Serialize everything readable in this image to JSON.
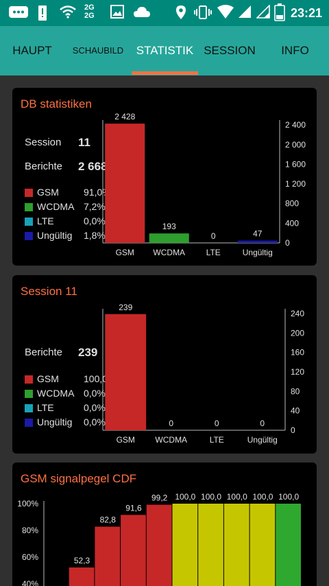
{
  "status_bar": {
    "time": "23:21",
    "icons": [
      "chat-icon",
      "alert-icon",
      "wifi-icon",
      "network-2g-icon",
      "image-icon",
      "cloud-icon",
      "location-icon",
      "vibrate-icon",
      "wifi-signal-icon",
      "signal-icon",
      "signal-icon",
      "battery-icon"
    ],
    "network_label_top": "2G",
    "network_label_bottom": "2G"
  },
  "tabs": [
    {
      "label": "HAUPT",
      "active": false
    },
    {
      "label": "SCHAUBILD",
      "active": false
    },
    {
      "label": "STATISTIK",
      "active": true
    },
    {
      "label": "SESSION",
      "active": false
    },
    {
      "label": "INFO",
      "active": false
    }
  ],
  "colors": {
    "accent": "#ff7043",
    "status_bar": "#00897b",
    "tab_bar": "#26a69a",
    "gsm": "#c62828",
    "wcdma": "#2e9e2e",
    "lte": "#17a2b8",
    "invalid": "#1a1aa8",
    "cdf_red": "#c62828",
    "cdf_yellow": "#c6c600",
    "cdf_green": "#2fa82f"
  },
  "db_card": {
    "title": "DB statistiken",
    "session_label": "Session",
    "session_value": "11",
    "reports_label": "Berichte",
    "reports_value": "2 668",
    "legend": [
      {
        "name": "GSM",
        "pct": "91,0%",
        "color": "#c62828"
      },
      {
        "name": "WCDMA",
        "pct": "7,2%",
        "color": "#2e9e2e"
      },
      {
        "name": "LTE",
        "pct": "0,0%",
        "color": "#17a2b8"
      },
      {
        "name": "Ungültig",
        "pct": "1,8%",
        "color": "#1a1aa8"
      }
    ]
  },
  "session_card": {
    "title": "Session 11",
    "reports_label": "Berichte",
    "reports_value": "239",
    "legend": [
      {
        "name": "GSM",
        "pct": "100,0%",
        "color": "#c62828"
      },
      {
        "name": "WCDMA",
        "pct": "0,0%",
        "color": "#2e9e2e"
      },
      {
        "name": "LTE",
        "pct": "0,0%",
        "color": "#17a2b8"
      },
      {
        "name": "Ungültig",
        "pct": "0,0%",
        "color": "#1a1aa8"
      }
    ]
  },
  "cdf_card": {
    "title": "GSM signalpegel CDF"
  },
  "chart_data": [
    {
      "type": "bar",
      "categories": [
        "GSM",
        "WCDMA",
        "LTE",
        "Ungültig"
      ],
      "values": [
        2428,
        193,
        0,
        47
      ],
      "value_labels": [
        "2 428",
        "193",
        "0",
        "47"
      ],
      "colors": [
        "#c62828",
        "#2e9e2e",
        "#17a2b8",
        "#1a1aa8"
      ],
      "ylim": [
        0,
        2500
      ],
      "yticks": [
        0,
        400,
        800,
        1200,
        1600,
        2000,
        2400
      ],
      "ytick_labels": [
        "0",
        "400",
        "800",
        "1 200",
        "1 600",
        "2 000",
        "2 400"
      ],
      "axis_side": "right"
    },
    {
      "type": "bar",
      "categories": [
        "GSM",
        "WCDMA",
        "LTE",
        "Ungültig"
      ],
      "values": [
        239,
        0,
        0,
        0
      ],
      "value_labels": [
        "239",
        "0",
        "0",
        "0"
      ],
      "colors": [
        "#c62828",
        "#2e9e2e",
        "#17a2b8",
        "#1a1aa8"
      ],
      "ylim": [
        0,
        250
      ],
      "yticks": [
        0,
        40,
        80,
        120,
        160,
        200,
        240
      ],
      "ytick_labels": [
        "0",
        "40",
        "80",
        "120",
        "160",
        "200",
        "240"
      ],
      "axis_side": "right"
    },
    {
      "type": "bar",
      "values": [
        null,
        52.3,
        82.8,
        91.6,
        99.2,
        100.0,
        100.0,
        100.0,
        100.0,
        100.0
      ],
      "value_labels": [
        "",
        "52,3",
        "82,8",
        "91,6",
        "99,2",
        "100,0",
        "100,0",
        "100,0",
        "100,0",
        "100,0"
      ],
      "colors": [
        "#c62828",
        "#c62828",
        "#c62828",
        "#c62828",
        "#c62828",
        "#c6c600",
        "#c6c600",
        "#c6c600",
        "#c6c600",
        "#2fa82f"
      ],
      "ylim": [
        0,
        100
      ],
      "yticks": [
        40,
        60,
        80,
        100
      ],
      "ytick_labels": [
        "40%",
        "60%",
        "80%",
        "100%"
      ],
      "axis_side": "left"
    }
  ]
}
